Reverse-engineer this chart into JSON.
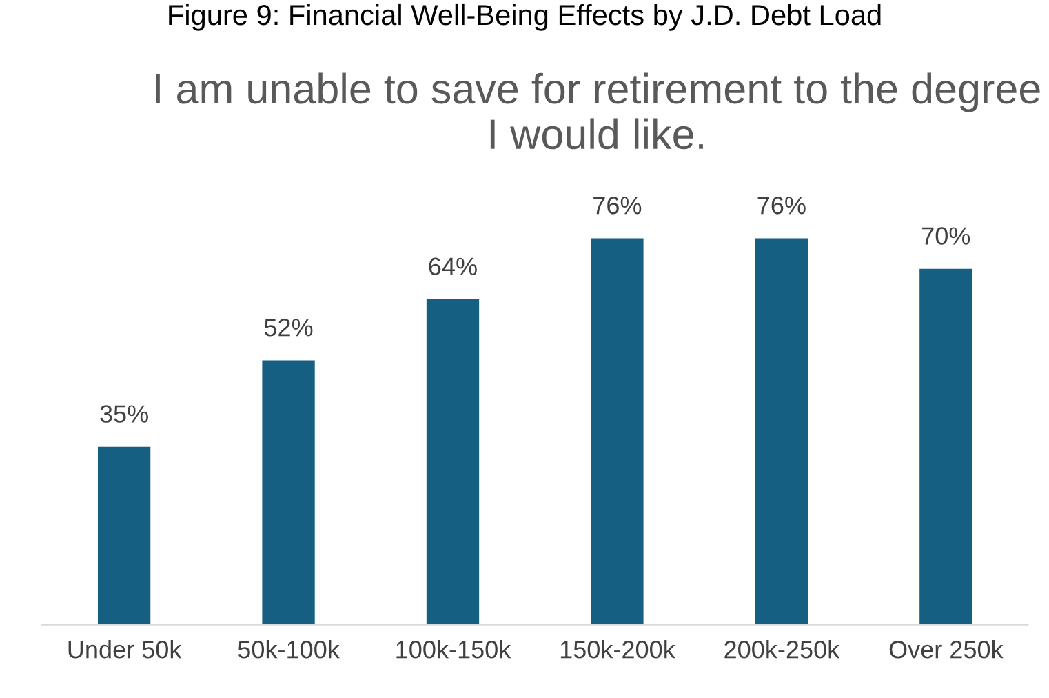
{
  "chart_data": {
    "type": "bar",
    "title": "I am unable to save for retirement to the degree I would like.",
    "annotations": [
      "Figure 9: Financial Well-Being Effects by J.D. Debt Load"
    ],
    "categories": [
      "Under 50k",
      "50k-100k",
      "100k-150k",
      "150k-200k",
      "200k-250k",
      "Over 250k"
    ],
    "values": [
      35,
      52,
      64,
      76,
      76,
      70
    ],
    "value_labels": [
      "35%",
      "52%",
      "64%",
      "76%",
      "76%",
      "70%"
    ],
    "color": "#155f82"
  }
}
